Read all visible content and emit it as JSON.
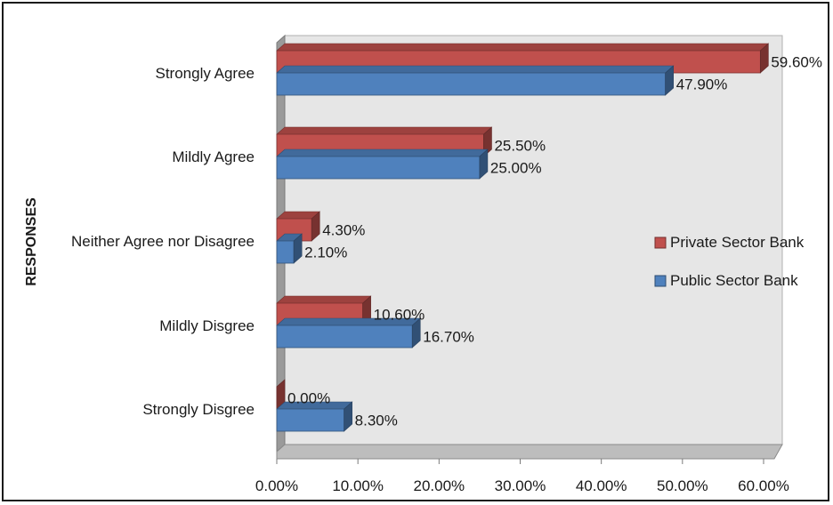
{
  "chart_data": {
    "type": "bar",
    "orientation": "horizontal",
    "style": "3d-clustered",
    "categories": [
      "Strongly Agree",
      "Mildly Agree",
      "Neither Agree nor Disagree",
      "Mildly Disgree",
      "Strongly Disgree"
    ],
    "series": [
      {
        "name": "Private Sector Bank",
        "color": "#c0504d",
        "values": [
          59.6,
          25.5,
          4.3,
          10.6,
          0.0
        ],
        "labels": [
          "59.60%",
          "25.50%",
          "4.30%",
          "10.60%",
          "0.00%"
        ]
      },
      {
        "name": "Public Sector Bank",
        "color": "#4f81bd",
        "values": [
          47.9,
          25.0,
          2.1,
          16.7,
          8.3
        ],
        "labels": [
          "47.90%",
          "25.00%",
          "2.10%",
          "16.70%",
          "8.30%"
        ]
      }
    ],
    "xlim": [
      0,
      60
    ],
    "xticks": [
      "0.00%",
      "10.00%",
      "20.00%",
      "30.00%",
      "40.00%",
      "50.00%",
      "60.00%"
    ],
    "ylabel": "RESPONSES",
    "xlabel": "",
    "title": "",
    "legend_position": "right",
    "grid": false,
    "plot_background": "#e6e6e6"
  }
}
